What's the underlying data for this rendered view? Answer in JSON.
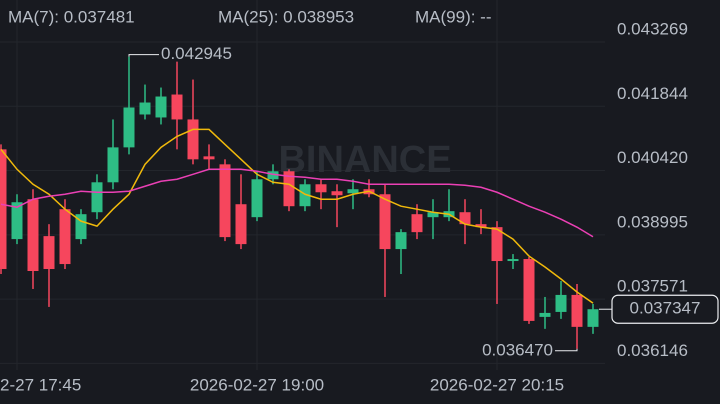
{
  "chart_data": {
    "type": "candlestick",
    "watermark": "BINANCE",
    "categories": [
      null,
      "2-27 17:45",
      null,
      null,
      null,
      null,
      null,
      null,
      null,
      null,
      null,
      null,
      null,
      null,
      null,
      null,
      "2026-02-27 19:00",
      null,
      null,
      null,
      null,
      null,
      null,
      null,
      null,
      null,
      null,
      null,
      null,
      null,
      null,
      "2026-02-27 20:15",
      null,
      null,
      null,
      null,
      null,
      null
    ],
    "open": [
      0.04089,
      0.038901,
      0.039785,
      0.038967,
      0.039564,
      0.038901,
      0.039497,
      0.04016,
      0.040934,
      0.041663,
      0.041597,
      0.042105,
      0.041553,
      0.040735,
      0.040558,
      0.039674,
      0.039387,
      0.040227,
      0.040404,
      0.03963,
      0.040116,
      0.039962,
      0.039917,
      0.040006,
      0.039895,
      0.03868,
      0.039453,
      0.039387,
      0.039387,
      0.039497,
      0.039232,
      0.039166,
      0.038415,
      0.038459,
      0.037177,
      0.037287,
      0.037664,
      0.036956
    ],
    "high": [
      0.041,
      0.039895,
      0.040006,
      0.039232,
      0.039785,
      0.039564,
      0.040337,
      0.041553,
      0.042945,
      0.042326,
      0.04226,
      0.042834,
      0.042437,
      0.041,
      0.040669,
      0.040337,
      0.040404,
      0.040558,
      0.040448,
      0.040227,
      0.040227,
      0.040116,
      0.040227,
      0.040227,
      0.040116,
      0.039122,
      0.039674,
      0.039785,
      0.040006,
      0.039785,
      0.039564,
      0.039299,
      0.038569,
      0.038503,
      0.037619,
      0.037972,
      0.037906,
      0.037464
    ],
    "low": [
      0.038127,
      0.03879,
      0.037796,
      0.037398,
      0.038238,
      0.03879,
      0.039343,
      0.040006,
      0.040779,
      0.041553,
      0.041442,
      0.04089,
      0.040558,
      0.040448,
      0.038857,
      0.03868,
      0.039299,
      0.040116,
      0.03952,
      0.03952,
      0.039564,
      0.039166,
      0.039564,
      0.039829,
      0.037619,
      0.038127,
      0.038901,
      0.038901,
      0.039299,
      0.03879,
      0.039011,
      0.037464,
      0.038238,
      0.037022,
      0.036912,
      0.037133,
      0.03647,
      0.036801
    ],
    "close": [
      0.038238,
      0.039718,
      0.038194,
      0.038238,
      0.038348,
      0.039453,
      0.04016,
      0.040934,
      0.041818,
      0.041928,
      0.042061,
      0.041553,
      0.040669,
      0.040669,
      0.038945,
      0.03879,
      0.040227,
      0.040404,
      0.03963,
      0.040116,
      0.039939,
      0.039873,
      0.040006,
      0.039895,
      0.03868,
      0.039055,
      0.039055,
      0.039497,
      0.03952,
      0.039232,
      0.039166,
      0.038415,
      0.038459,
      0.037088,
      0.037265,
      0.037664,
      0.036956,
      0.037347
    ],
    "up_color": "#2ebd85",
    "down_color": "#f6465d",
    "series": [
      {
        "name": "MA(7): 0.037481",
        "color": "#f0b90b",
        "values": [
          0.04089,
          0.040448,
          0.040116,
          0.039895,
          0.039564,
          0.039299,
          0.039188,
          0.039564,
          0.039895,
          0.040558,
          0.040934,
          0.041177,
          0.041332,
          0.041332,
          0.041,
          0.040669,
          0.040337,
          0.04016,
          0.040116,
          0.039895,
          0.039785,
          0.039785,
          0.039895,
          0.039962,
          0.039785,
          0.03963,
          0.039564,
          0.039497,
          0.039453,
          0.039232,
          0.039166,
          0.039122,
          0.038901,
          0.038525,
          0.038282,
          0.038017,
          0.037729,
          0.037481
        ]
      },
      {
        "name": "MA(25): 0.038953",
        "color": "#eb40b5",
        "values": [
          0.039674,
          0.039608,
          0.039785,
          0.039851,
          0.039895,
          0.039962,
          0.039939,
          0.039939,
          0.039962,
          0.040072,
          0.040183,
          0.040227,
          0.040337,
          0.040448,
          0.040448,
          0.040448,
          0.040404,
          0.040337,
          0.040293,
          0.040271,
          0.040227,
          0.040227,
          0.040183,
          0.040116,
          0.040116,
          0.040116,
          0.040116,
          0.040116,
          0.040116,
          0.040094,
          0.04005,
          0.039939,
          0.039785,
          0.03963,
          0.039497,
          0.039343,
          0.039166,
          0.038953
        ]
      },
      {
        "name": "MA(99): --",
        "color": "#b385f8",
        "values": [
          null,
          null,
          null,
          null,
          null,
          null,
          null,
          null,
          null,
          null,
          null,
          null,
          null,
          null,
          null,
          null,
          null,
          null,
          null,
          null,
          null,
          null,
          null,
          null,
          null,
          null,
          null,
          null,
          null,
          null,
          null,
          null,
          null,
          null,
          null,
          null,
          null,
          null
        ]
      }
    ],
    "ylim": [
      0.036,
      0.0442
    ],
    "yticks": [
      {
        "value": 0.043269,
        "label": "0.043269"
      },
      {
        "value": 0.041844,
        "label": "0.041844"
      },
      {
        "value": 0.04042,
        "label": "0.040420"
      },
      {
        "value": 0.038995,
        "label": "0.038995"
      },
      {
        "value": 0.037571,
        "label": "0.037571"
      },
      {
        "value": 0.036146,
        "label": "0.036146"
      }
    ],
    "grid": true,
    "annotations": [
      {
        "kind": "max",
        "index": 8,
        "value": 0.042945,
        "label": "0.042945"
      },
      {
        "kind": "min",
        "index": 36,
        "value": 0.03647,
        "label": "0.036470"
      },
      {
        "kind": "last",
        "index": 37,
        "value": 0.037347,
        "label": "0.037347"
      }
    ]
  }
}
